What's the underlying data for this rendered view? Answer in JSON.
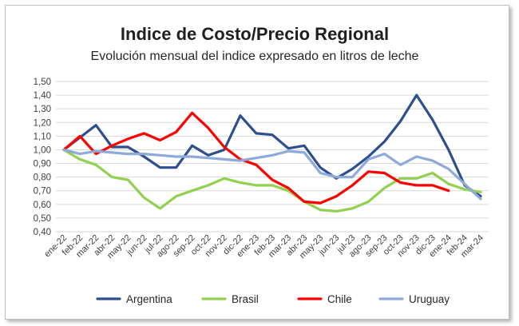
{
  "chart_data": {
    "type": "line",
    "title": "Indice de Costo/Precio Regional",
    "subtitle": "Evolución mensual del indice expresado en litros de leche",
    "xlabel": "",
    "ylabel": "",
    "ylim": [
      0.4,
      1.5
    ],
    "yticks": [
      "0,40",
      "0,50",
      "0,60",
      "0,70",
      "0,80",
      "0,90",
      "1,00",
      "1,10",
      "1,20",
      "1,30",
      "1,40",
      "1,50"
    ],
    "categories": [
      "ene-22",
      "feb-22",
      "mar-22",
      "abr-22",
      "may-22",
      "jun-22",
      "jul-22",
      "ago-22",
      "sep-22",
      "oct-22",
      "nov-22",
      "dic-22",
      "ene-23",
      "feb-23",
      "mar-23",
      "abr-23",
      "may-23",
      "jun-23",
      "jul-23",
      "ago-23",
      "sep-23",
      "oct-23",
      "nov-23",
      "dic-23",
      "ene-24",
      "feb-24",
      "mar-24"
    ],
    "grid": "horizontal",
    "legend_position": "bottom",
    "series": [
      {
        "name": "Argentina",
        "color": "#2e4f8f",
        "values": [
          1.0,
          1.09,
          1.18,
          1.02,
          1.02,
          0.95,
          0.87,
          0.87,
          1.03,
          0.96,
          1.0,
          1.25,
          1.12,
          1.11,
          1.01,
          1.03,
          0.87,
          0.79,
          0.86,
          0.95,
          1.06,
          1.21,
          1.4,
          1.22,
          1.0,
          0.74,
          0.66
        ]
      },
      {
        "name": "Brasil",
        "color": "#92d050",
        "values": [
          1.0,
          0.93,
          0.89,
          0.8,
          0.78,
          0.65,
          0.57,
          0.66,
          0.7,
          0.74,
          0.79,
          0.76,
          0.74,
          0.74,
          0.7,
          0.62,
          0.56,
          0.55,
          0.57,
          0.62,
          0.72,
          0.79,
          0.79,
          0.83,
          0.75,
          0.71,
          0.69
        ]
      },
      {
        "name": "Chile",
        "color": "#ff0000",
        "values": [
          1.0,
          1.1,
          0.97,
          1.03,
          1.08,
          1.12,
          1.07,
          1.13,
          1.27,
          1.16,
          1.02,
          0.93,
          0.89,
          0.78,
          0.72,
          0.62,
          0.61,
          0.66,
          0.74,
          0.84,
          0.83,
          0.76,
          0.74,
          0.74,
          0.7,
          null,
          null
        ]
      },
      {
        "name": "Uruguay",
        "color": "#8eaadb",
        "values": [
          1.0,
          0.97,
          0.99,
          0.98,
          0.97,
          0.97,
          0.96,
          0.95,
          0.95,
          0.94,
          0.93,
          0.92,
          0.94,
          0.96,
          0.99,
          0.98,
          0.83,
          0.8,
          0.8,
          0.93,
          0.97,
          0.89,
          0.95,
          0.92,
          0.86,
          0.75,
          0.64
        ]
      }
    ]
  }
}
